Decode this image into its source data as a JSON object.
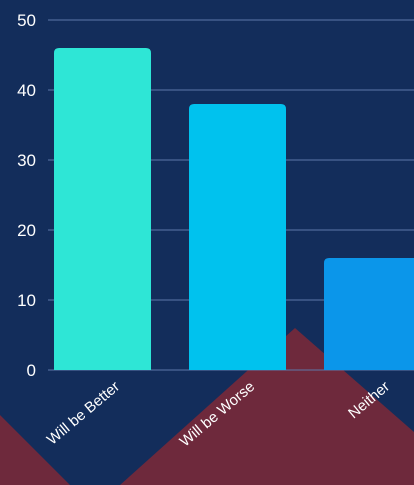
{
  "colors": {
    "background": "#132d5b",
    "gridline": "#5d77a8",
    "tick_text": "#ffffff",
    "bar_colors": [
      "#2ee6d6",
      "#00c2ee",
      "#0b96ea"
    ],
    "decor_shape": "#6e293c"
  },
  "chart_data": {
    "type": "bar",
    "title": "",
    "xlabel": "",
    "ylabel": "",
    "categories": [
      "Will be Better",
      "Will be Worse",
      "Neither"
    ],
    "values": [
      46,
      38,
      16
    ],
    "ylim": [
      0,
      50
    ],
    "yticks": [
      0,
      10,
      20,
      30,
      40,
      50
    ],
    "grid": true,
    "legend": "none"
  }
}
